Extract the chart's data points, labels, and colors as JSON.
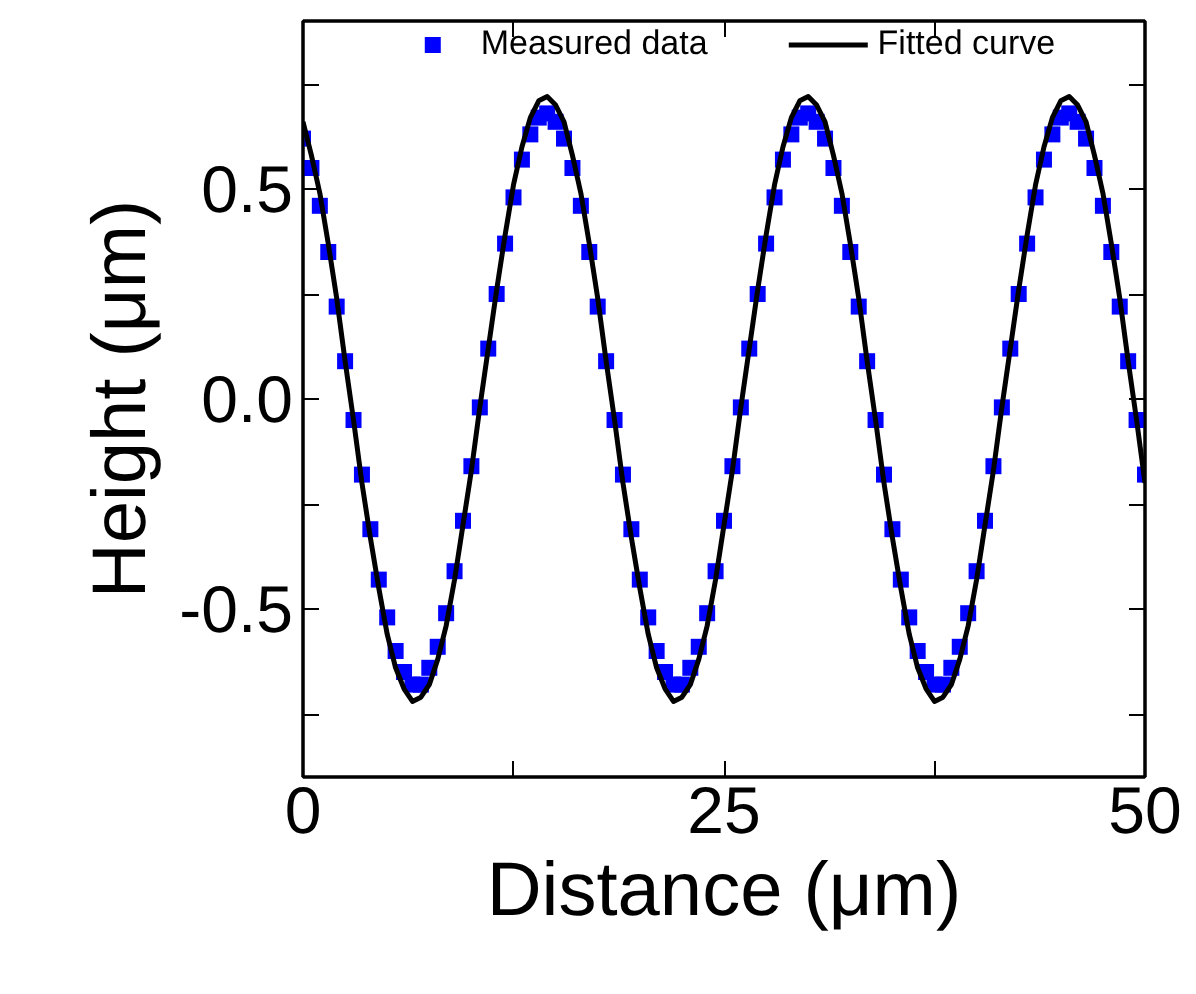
{
  "chart_data": {
    "type": "line",
    "xlabel": "Distance (μm)",
    "ylabel": "Height (μm)",
    "x": [
      0,
      0.5,
      1,
      1.5,
      2,
      2.5,
      3,
      3.5,
      4,
      4.5,
      5,
      5.5,
      6,
      6.5,
      7,
      7.5,
      8,
      8.5,
      9,
      9.5,
      10,
      10.5,
      11,
      11.5,
      12,
      12.5,
      13,
      13.5,
      14,
      14.5,
      15,
      15.5,
      16,
      16.5,
      17,
      17.5,
      18,
      18.5,
      19,
      19.5,
      20,
      20.5,
      21,
      21.5,
      22,
      22.5,
      23,
      23.5,
      24,
      24.5,
      25,
      25.5,
      26,
      26.5,
      27,
      27.5,
      28,
      28.5,
      29,
      29.5,
      30,
      30.5,
      31,
      31.5,
      32,
      32.5,
      33,
      33.5,
      34,
      34.5,
      35,
      35.5,
      36,
      36.5,
      37,
      37.5,
      38,
      38.5,
      39,
      39.5,
      40,
      40.5,
      41,
      41.5,
      42,
      42.5,
      43,
      43.5,
      44,
      44.5,
      45,
      45.5,
      46,
      46.5,
      47,
      47.5,
      48,
      48.5,
      49,
      49.5,
      50
    ],
    "series": [
      {
        "name": "Measured data",
        "type": "scatter",
        "marker": "square",
        "color": "#0000ff",
        "values": [
          0.62,
          0.55,
          0.46,
          0.35,
          0.22,
          0.09,
          -0.05,
          -0.18,
          -0.31,
          -0.43,
          -0.52,
          -0.6,
          -0.65,
          -0.68,
          -0.68,
          -0.64,
          -0.59,
          -0.51,
          -0.41,
          -0.29,
          -0.16,
          -0.02,
          0.12,
          0.25,
          0.37,
          0.48,
          0.57,
          0.63,
          0.67,
          0.68,
          0.66,
          0.62,
          0.55,
          0.46,
          0.35,
          0.22,
          0.09,
          -0.05,
          -0.18,
          -0.31,
          -0.43,
          -0.52,
          -0.6,
          -0.65,
          -0.68,
          -0.68,
          -0.64,
          -0.59,
          -0.51,
          -0.41,
          -0.29,
          -0.16,
          -0.02,
          0.12,
          0.25,
          0.37,
          0.48,
          0.57,
          0.63,
          0.67,
          0.68,
          0.66,
          0.62,
          0.55,
          0.46,
          0.35,
          0.22,
          0.09,
          -0.05,
          -0.18,
          -0.31,
          -0.43,
          -0.52,
          -0.6,
          -0.65,
          -0.68,
          -0.68,
          -0.64,
          -0.59,
          -0.51,
          -0.41,
          -0.29,
          -0.16,
          -0.02,
          0.12,
          0.25,
          0.37,
          0.48,
          0.57,
          0.63,
          0.67,
          0.68,
          0.66,
          0.62,
          0.55,
          0.46,
          0.35,
          0.22,
          0.09,
          -0.05,
          -0.18
        ]
      },
      {
        "name": "Fitted curve",
        "line_style": "solid",
        "color": "#000000",
        "values": [
          0.66,
          0.58,
          0.49,
          0.37,
          0.24,
          0.09,
          -0.05,
          -0.2,
          -0.33,
          -0.45,
          -0.56,
          -0.64,
          -0.69,
          -0.72,
          -0.71,
          -0.68,
          -0.62,
          -0.54,
          -0.43,
          -0.3,
          -0.17,
          -0.02,
          0.12,
          0.26,
          0.39,
          0.51,
          0.6,
          0.67,
          0.71,
          0.72,
          0.7,
          0.66,
          0.58,
          0.49,
          0.37,
          0.24,
          0.09,
          -0.05,
          -0.2,
          -0.33,
          -0.45,
          -0.56,
          -0.64,
          -0.69,
          -0.72,
          -0.71,
          -0.68,
          -0.62,
          -0.54,
          -0.43,
          -0.3,
          -0.17,
          -0.02,
          0.12,
          0.26,
          0.39,
          0.51,
          0.6,
          0.67,
          0.71,
          0.72,
          0.7,
          0.66,
          0.58,
          0.49,
          0.37,
          0.24,
          0.09,
          -0.05,
          -0.2,
          -0.33,
          -0.45,
          -0.56,
          -0.64,
          -0.69,
          -0.72,
          -0.71,
          -0.68,
          -0.62,
          -0.54,
          -0.43,
          -0.3,
          -0.17,
          -0.02,
          0.12,
          0.26,
          0.39,
          0.51,
          0.6,
          0.67,
          0.71,
          0.72,
          0.7,
          0.66,
          0.58,
          0.49,
          0.37,
          0.24,
          0.09,
          -0.05,
          -0.2
        ]
      }
    ],
    "xlim": [
      0,
      50
    ],
    "xticks": [
      0,
      {
        "value": 12.5,
        "label": null
      },
      25,
      {
        "value": 37.5,
        "label": null
      },
      50
    ],
    "ylim": [
      -0.9,
      0.9
    ],
    "yticks": [
      {
        "value": -0.75,
        "label": null
      },
      -0.5,
      {
        "value": -0.25,
        "label": null
      },
      {
        "value": 0,
        "label": "0.0"
      },
      {
        "value": 0.25,
        "label": null
      },
      0.5,
      {
        "value": 0.75,
        "label": null
      }
    ],
    "grid": false,
    "legend": "top"
  }
}
